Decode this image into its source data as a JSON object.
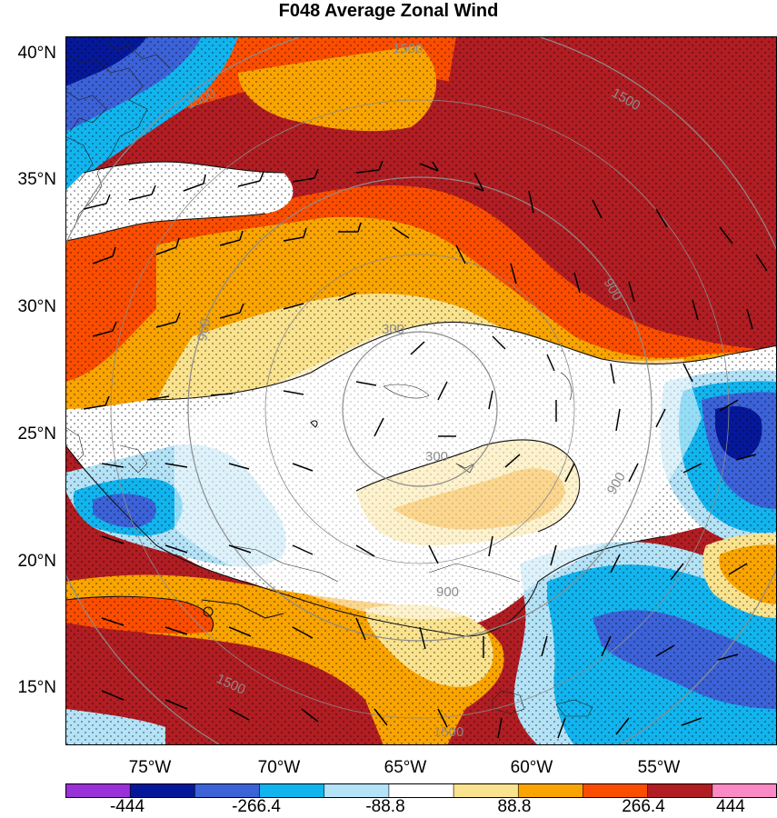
{
  "title": "F048 Average Zonal Wind",
  "lat_labels": [
    "40°N",
    "35°N",
    "30°N",
    "25°N",
    "20°N",
    "15°N"
  ],
  "lon_labels": [
    "75°W",
    "70°W",
    "65°W",
    "60°W",
    "55°W"
  ],
  "contour_labels": [
    "300",
    "300",
    "900",
    "900",
    "900",
    "900",
    "1500",
    "1500",
    "1500",
    "1500",
    "1500"
  ],
  "colorbar": {
    "tick_labels": [
      "-444",
      "-266.4",
      "-88.8",
      "88.8",
      "266.4",
      "444"
    ],
    "colors": [
      "#9a30d8",
      "#06189a",
      "#3c62d8",
      "#12b4ee",
      "#b4e2f6",
      "#ffffff",
      "#fae38e",
      "#f9a400",
      "#fb4d00",
      "#b01d22",
      "#fb89c4"
    ]
  }
}
